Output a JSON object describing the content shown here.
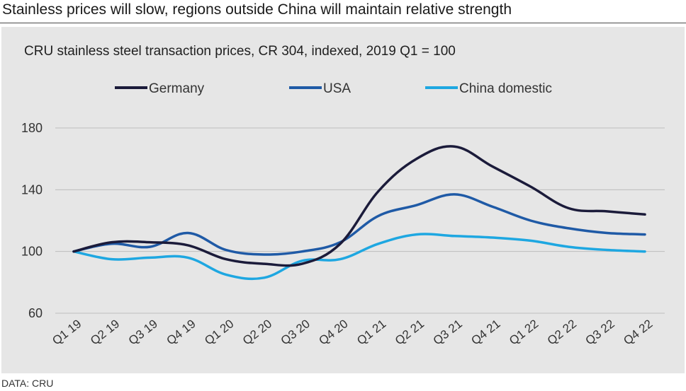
{
  "headline": "Stainless prices will slow, regions outside China will maintain relative strength",
  "source": "DATA: CRU",
  "chart_data": {
    "type": "line",
    "title": "CRU stainless steel transaction prices, CR 304, indexed, 2019 Q1 = 100",
    "xlabel": "",
    "ylabel": "",
    "categories": [
      "Q1 19",
      "Q2 19",
      "Q3 19",
      "Q4 19",
      "Q1 20",
      "Q2 20",
      "Q3 20",
      "Q4 20",
      "Q1 21",
      "Q2 21",
      "Q3 21",
      "Q4 21",
      "Q1 22",
      "Q2 22",
      "Q3 22",
      "Q4 22"
    ],
    "ylim": [
      60,
      180
    ],
    "yticks": [
      60,
      100,
      140,
      180
    ],
    "grid": true,
    "legend_position": "top",
    "series": [
      {
        "name": "Germany",
        "color": "#1b1b3a",
        "values": [
          100,
          106,
          106,
          104,
          95,
          92,
          92,
          105,
          139,
          160,
          168,
          155,
          142,
          128,
          126,
          124
        ]
      },
      {
        "name": "USA",
        "color": "#1f5aa6",
        "values": [
          100,
          105,
          103,
          112,
          101,
          98,
          100,
          106,
          123,
          130,
          137,
          129,
          120,
          115,
          112,
          111
        ]
      },
      {
        "name": "China domestic",
        "color": "#1ea7e1",
        "values": [
          100,
          95,
          96,
          96,
          85,
          83,
          94,
          95,
          105,
          111,
          110,
          109,
          107,
          103,
          101,
          100
        ]
      }
    ]
  }
}
